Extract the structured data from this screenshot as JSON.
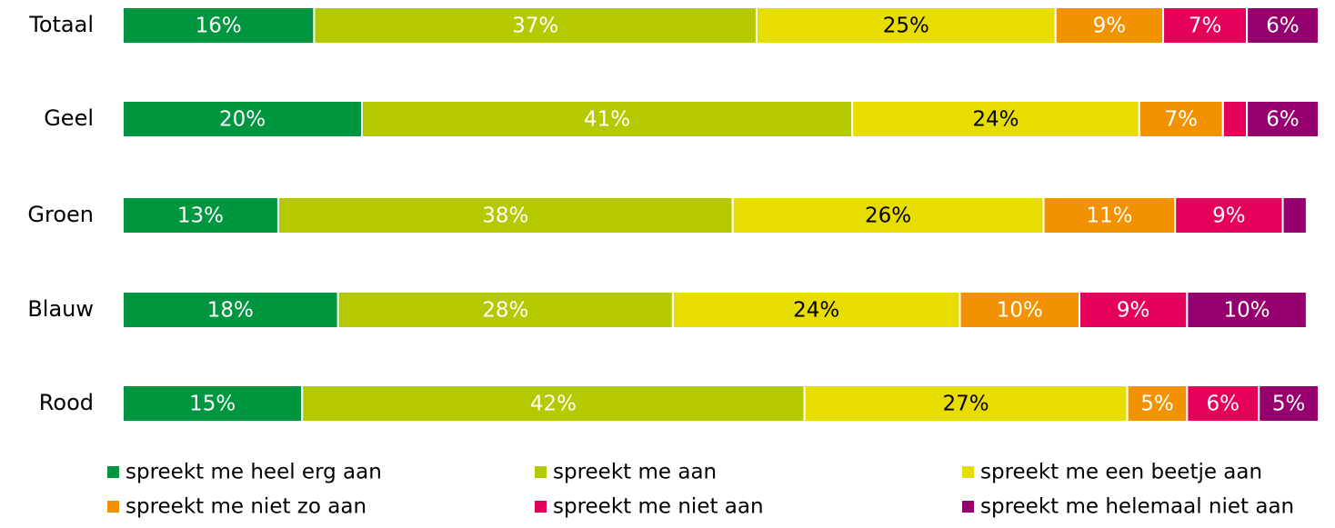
{
  "chart_data": {
    "type": "stacked_barh",
    "categories": [
      "Totaal",
      "Geel",
      "Groen",
      "Blauw",
      "Rood"
    ],
    "xlim": [
      0,
      100
    ],
    "series": [
      {
        "name": "spreekt me heel erg aan",
        "color": "#009640",
        "values": [
          16,
          20,
          13,
          18,
          15
        ],
        "value_labels": [
          "16%",
          "20%",
          "13%",
          "18%",
          "15%"
        ]
      },
      {
        "name": "spreekt me aan",
        "color": "#b5c900",
        "values": [
          37,
          41,
          38,
          28,
          42
        ],
        "value_labels": [
          "37%",
          "41%",
          "38%",
          "28%",
          "42%"
        ]
      },
      {
        "name": "spreekt me een beetje aan",
        "color": "#e8dd00",
        "values": [
          25,
          24,
          26,
          24,
          27
        ],
        "value_labels": [
          "25%",
          "24%",
          "26%",
          "24%",
          "27%"
        ]
      },
      {
        "name": "spreekt me niet zo aan",
        "color": "#f39200",
        "values": [
          9,
          7,
          11,
          10,
          5
        ],
        "value_labels": [
          "9%",
          "7%",
          "11%",
          "10%",
          "5%"
        ]
      },
      {
        "name": "spreekt me niet aan",
        "color": "#e5005a",
        "values": [
          7,
          2,
          9,
          9,
          6
        ],
        "value_labels": [
          "7%",
          null,
          "9%",
          "9%",
          "6%"
        ]
      },
      {
        "name": "spreekt me helemaal niet aan",
        "color": "#95006e",
        "values": [
          6,
          6,
          2,
          10,
          5
        ],
        "value_labels": [
          "6%",
          "6%",
          null,
          "10%",
          "5%"
        ]
      }
    ],
    "legend": "bottom"
  }
}
